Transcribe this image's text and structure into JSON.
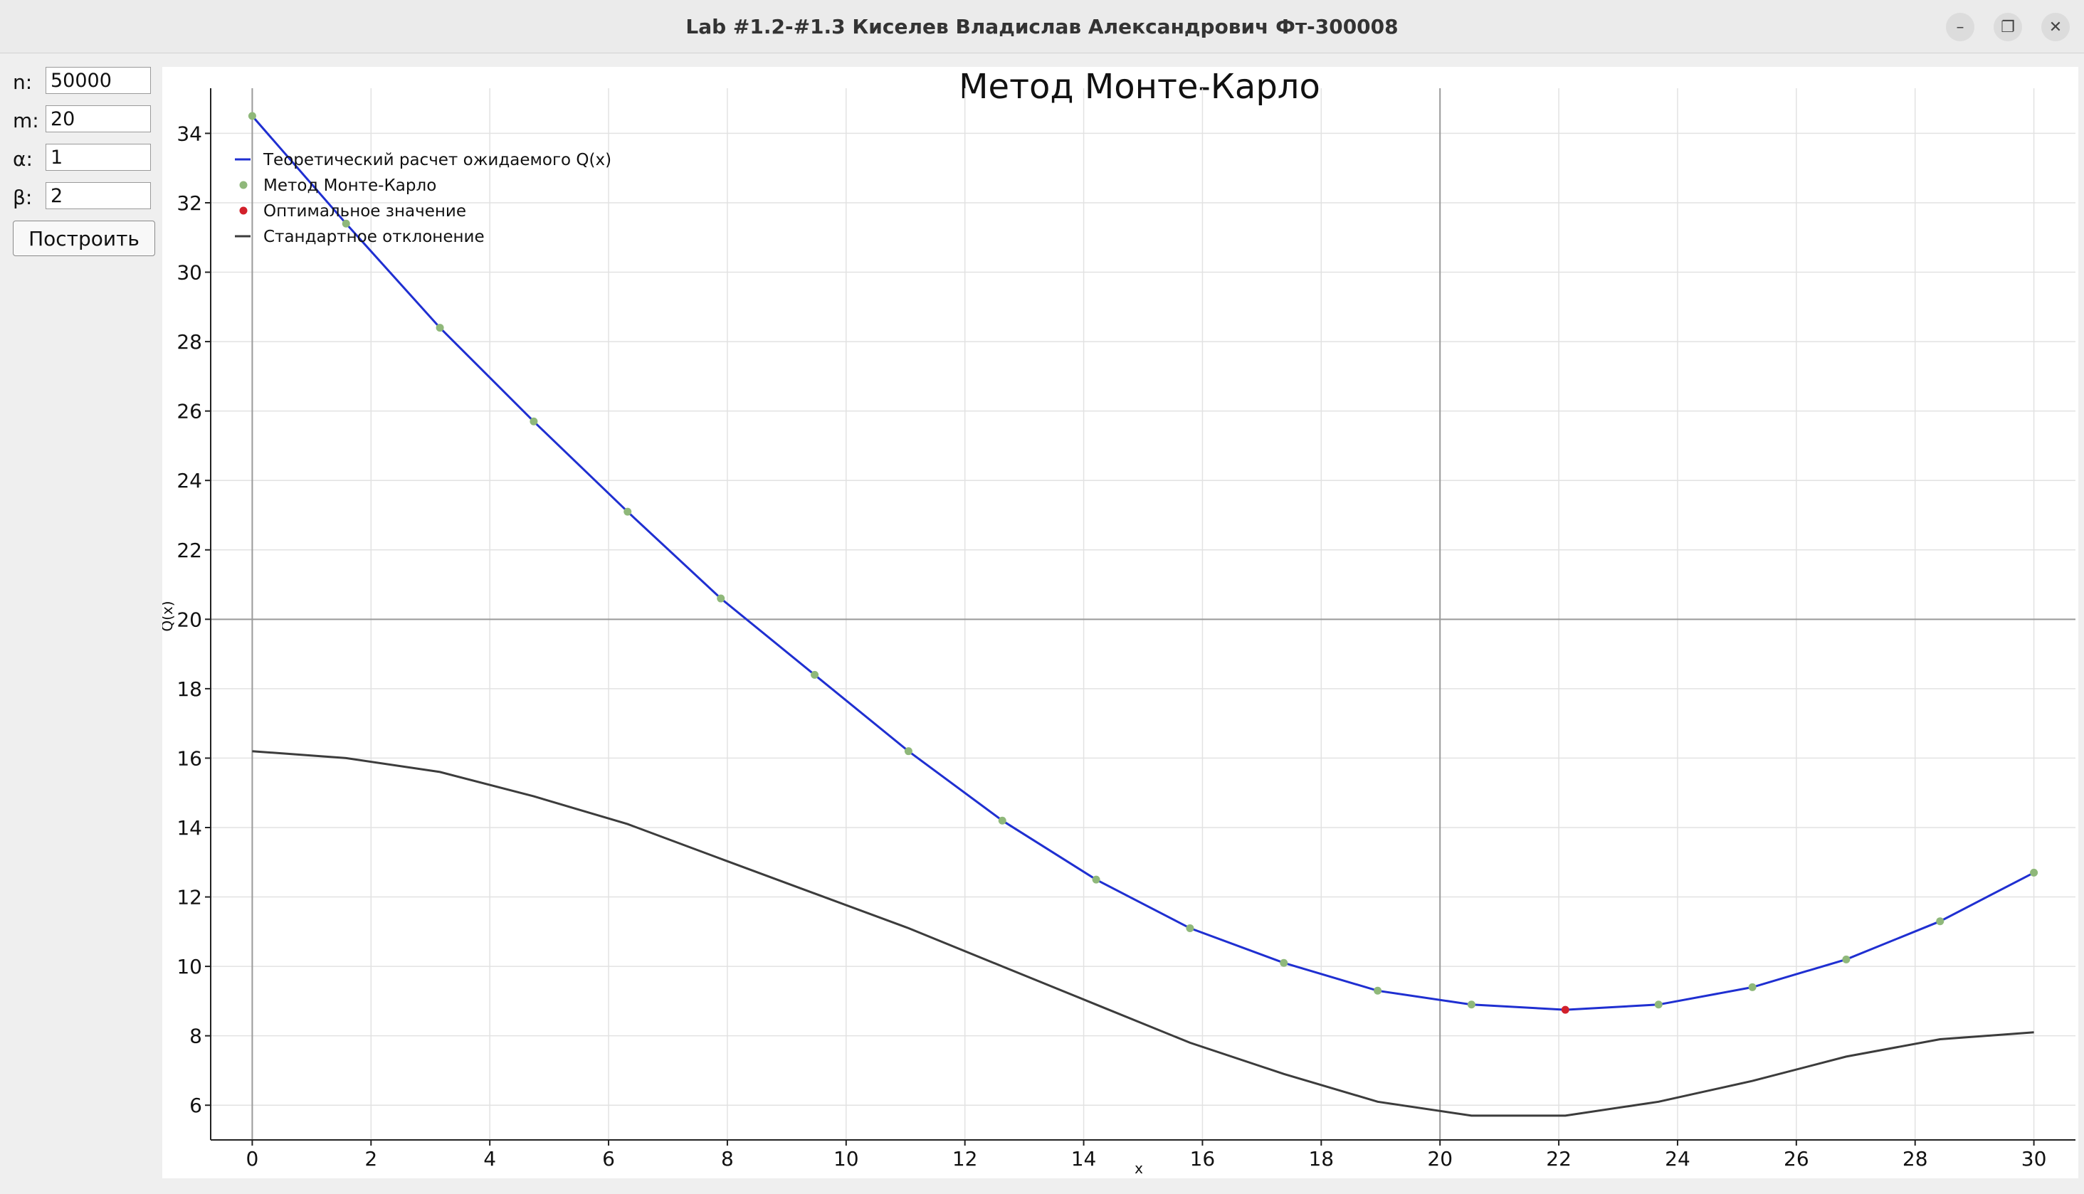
{
  "window": {
    "title": "Lab #1.2-#1.3 Киселев Владислав Александрович Фт-300008",
    "buttons": [
      "minimize-icon",
      "maximize-icon",
      "close-icon"
    ]
  },
  "params": {
    "n": {
      "label": "n:",
      "value": "50000"
    },
    "m": {
      "label": "m:",
      "value": "20"
    },
    "alpha": {
      "label": "α:",
      "value": "1"
    },
    "beta": {
      "label": "β:",
      "value": "2"
    },
    "build_label": "Построить"
  },
  "chart_data": {
    "type": "line",
    "title": "Метод Монте-Карло",
    "xlabel": "x",
    "ylabel": "Q(x)",
    "xlim": [
      -0.7,
      30.7
    ],
    "ylim": [
      5.0,
      35.3
    ],
    "x_ticks": [
      0,
      2,
      4,
      6,
      8,
      10,
      12,
      14,
      16,
      18,
      20,
      22,
      24,
      26,
      28,
      30
    ],
    "y_ticks": [
      6,
      8,
      10,
      12,
      14,
      16,
      18,
      20,
      22,
      24,
      26,
      28,
      30,
      32,
      34
    ],
    "grid": true,
    "legend_position": "top-left",
    "legend": [
      {
        "label": "Теоретический расчет ожидаемого Q(x)",
        "kind": "line",
        "color": "#1f2fd1"
      },
      {
        "label": "Метод Монте-Карло",
        "kind": "point",
        "color": "#8fb87a"
      },
      {
        "label": "Оптимальное значение",
        "kind": "point",
        "color": "#d2202b"
      },
      {
        "label": "Стандартное отклонение",
        "kind": "line",
        "color": "#3c3c3c"
      }
    ],
    "series": [
      {
        "name": "Теоретический расчет ожидаемого Q(x)",
        "style": "line",
        "color": "#1f2fd1",
        "x": [
          0,
          1.58,
          3.16,
          4.74,
          6.32,
          7.89,
          9.47,
          11.05,
          12.63,
          14.21,
          15.79,
          17.37,
          18.95,
          20.53,
          22.11,
          23.68,
          25.26,
          26.84,
          28.42,
          30
        ],
        "y": [
          34.5,
          31.4,
          28.4,
          25.7,
          23.1,
          20.6,
          18.4,
          16.2,
          14.2,
          12.5,
          11.1,
          10.1,
          9.3,
          8.9,
          8.75,
          8.9,
          9.4,
          10.2,
          11.3,
          12.7
        ]
      },
      {
        "name": "Метод Монте-Карло",
        "style": "points",
        "color": "#8fb87a",
        "x": [
          0,
          1.58,
          3.16,
          4.74,
          6.32,
          7.89,
          9.47,
          11.05,
          12.63,
          14.21,
          15.79,
          17.37,
          18.95,
          20.53,
          23.68,
          25.26,
          26.84,
          28.42,
          30
        ],
        "y": [
          34.5,
          31.4,
          28.4,
          25.7,
          23.1,
          20.6,
          18.4,
          16.2,
          14.2,
          12.5,
          11.1,
          10.1,
          9.3,
          8.9,
          8.9,
          9.4,
          10.2,
          11.3,
          12.7
        ]
      },
      {
        "name": "Оптимальное значение",
        "style": "points",
        "color": "#d2202b",
        "x": [
          22.11
        ],
        "y": [
          8.75
        ]
      },
      {
        "name": "Стандартное отклонение",
        "style": "line",
        "color": "#3c3c3c",
        "x": [
          0,
          1.58,
          3.16,
          4.74,
          6.32,
          7.89,
          9.47,
          11.05,
          12.63,
          14.21,
          15.79,
          17.37,
          18.95,
          20.53,
          22.11,
          23.68,
          25.26,
          26.84,
          28.42,
          30
        ],
        "y": [
          16.2,
          16.0,
          15.6,
          14.9,
          14.1,
          13.1,
          12.1,
          11.1,
          10.0,
          8.9,
          7.8,
          6.9,
          6.1,
          5.7,
          5.7,
          6.1,
          6.7,
          7.4,
          7.9,
          8.1
        ]
      }
    ],
    "reference_lines": {
      "vertical_x": 20,
      "horizontal_y": 20
    }
  }
}
